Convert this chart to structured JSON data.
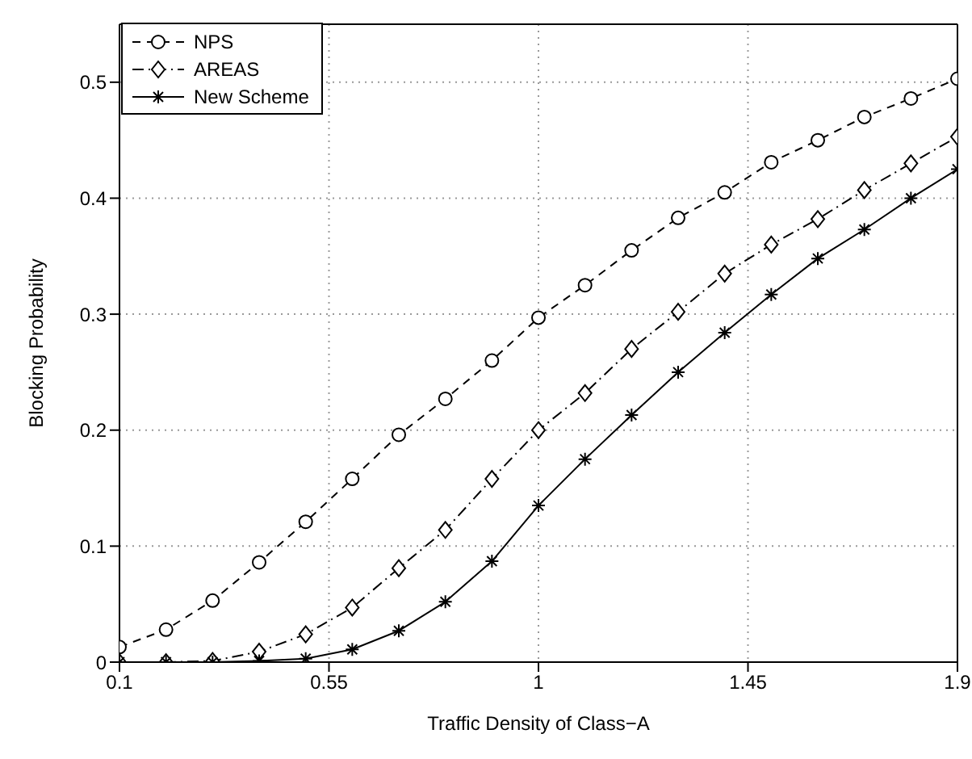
{
  "chart_data": {
    "type": "line",
    "xlabel": "Traffic Density of Class−A",
    "ylabel": "Blocking Probability",
    "x": [
      0.1,
      0.2,
      0.3,
      0.4,
      0.5,
      0.6,
      0.7,
      0.8,
      0.9,
      1.0,
      1.1,
      1.2,
      1.3,
      1.4,
      1.5,
      1.6,
      1.7,
      1.8,
      1.9
    ],
    "series": [
      {
        "name": "NPS",
        "color": "#000000",
        "marker": "circle",
        "line_style": "dashed",
        "values": [
          0.013,
          0.028,
          0.053,
          0.086,
          0.121,
          0.158,
          0.196,
          0.227,
          0.26,
          0.297,
          0.325,
          0.355,
          0.383,
          0.405,
          0.431,
          0.45,
          0.47,
          0.486,
          0.503
        ]
      },
      {
        "name": "AREAS",
        "color": "#000000",
        "marker": "diamond",
        "line_style": "dashdot",
        "values": [
          0,
          0,
          0.001,
          0.009,
          0.024,
          0.047,
          0.081,
          0.114,
          0.158,
          0.2,
          0.232,
          0.27,
          0.302,
          0.335,
          0.36,
          0.382,
          0.407,
          0.43,
          0.453
        ]
      },
      {
        "name": "New Scheme",
        "color": "#000000",
        "marker": "cross",
        "line_style": "solid",
        "values": [
          0,
          0,
          0,
          0.001,
          0.003,
          0.011,
          0.027,
          0.052,
          0.087,
          0.135,
          0.175,
          0.213,
          0.25,
          0.284,
          0.317,
          0.348,
          0.373,
          0.4,
          0.425
        ]
      }
    ],
    "xlim": [
      0.1,
      1.9
    ],
    "xticks": [
      0.1,
      0.55,
      1,
      1.45,
      1.9
    ],
    "ylim": [
      0,
      0.55
    ],
    "yticks": [
      0,
      0.1,
      0.2,
      0.3,
      0.4,
      0.5
    ],
    "grid": true,
    "legend": "top left"
  }
}
